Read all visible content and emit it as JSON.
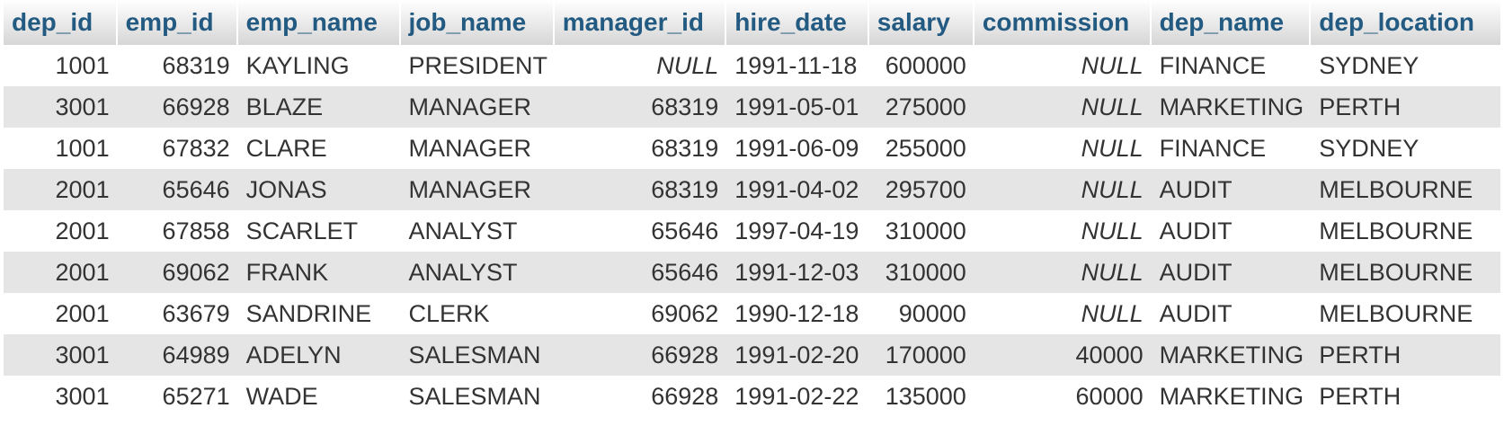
{
  "table": {
    "columns": [
      {
        "key": "dep_id",
        "label": "dep_id",
        "align": "right"
      },
      {
        "key": "emp_id",
        "label": "emp_id",
        "align": "right"
      },
      {
        "key": "emp_name",
        "label": "emp_name",
        "align": "left"
      },
      {
        "key": "job_name",
        "label": "job_name",
        "align": "left"
      },
      {
        "key": "manager_id",
        "label": "manager_id",
        "align": "right"
      },
      {
        "key": "hire_date",
        "label": "hire_date",
        "align": "left"
      },
      {
        "key": "salary",
        "label": "salary",
        "align": "right"
      },
      {
        "key": "commission",
        "label": "commission",
        "align": "right"
      },
      {
        "key": "dep_name",
        "label": "dep_name",
        "align": "left"
      },
      {
        "key": "dep_location",
        "label": "dep_location",
        "align": "left"
      }
    ],
    "rows": [
      [
        "1001",
        "68319",
        "KAYLING",
        "PRESIDENT",
        "NULL",
        "1991-11-18",
        "600000",
        "NULL",
        "FINANCE",
        "SYDNEY"
      ],
      [
        "3001",
        "66928",
        "BLAZE",
        "MANAGER",
        "68319",
        "1991-05-01",
        "275000",
        "NULL",
        "MARKETING",
        "PERTH"
      ],
      [
        "1001",
        "67832",
        "CLARE",
        "MANAGER",
        "68319",
        "1991-06-09",
        "255000",
        "NULL",
        "FINANCE",
        "SYDNEY"
      ],
      [
        "2001",
        "65646",
        "JONAS",
        "MANAGER",
        "68319",
        "1991-04-02",
        "295700",
        "NULL",
        "AUDIT",
        "MELBOURNE"
      ],
      [
        "2001",
        "67858",
        "SCARLET",
        "ANALYST",
        "65646",
        "1997-04-19",
        "310000",
        "NULL",
        "AUDIT",
        "MELBOURNE"
      ],
      [
        "2001",
        "69062",
        "FRANK",
        "ANALYST",
        "65646",
        "1991-12-03",
        "310000",
        "NULL",
        "AUDIT",
        "MELBOURNE"
      ],
      [
        "2001",
        "63679",
        "SANDRINE",
        "CLERK",
        "69062",
        "1990-12-18",
        "90000",
        "NULL",
        "AUDIT",
        "MELBOURNE"
      ],
      [
        "3001",
        "64989",
        "ADELYN",
        "SALESMAN",
        "66928",
        "1991-02-20",
        "170000",
        "40000",
        "MARKETING",
        "PERTH"
      ],
      [
        "3001",
        "65271",
        "WADE",
        "SALESMAN",
        "66928",
        "1991-02-22",
        "135000",
        "60000",
        "MARKETING",
        "PERTH"
      ]
    ]
  },
  "colors": {
    "header_text": "#235a81",
    "cell_text": "#333333",
    "null_text": "#8a8a8a",
    "row_alt_bg": "#e5e5e5",
    "row_bg": "#ffffff"
  }
}
